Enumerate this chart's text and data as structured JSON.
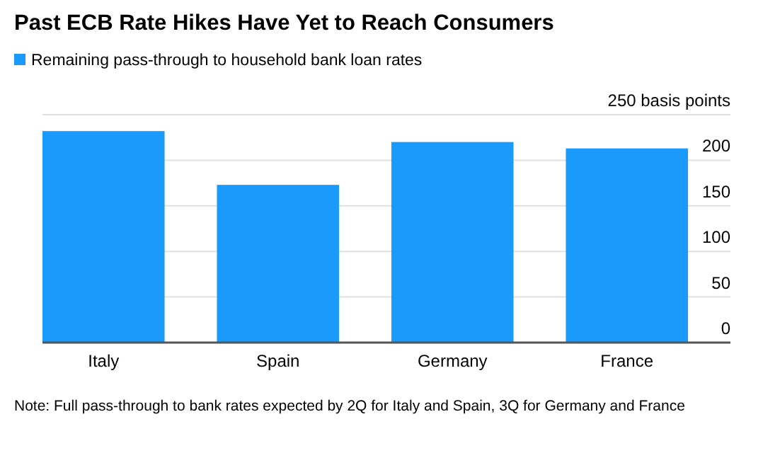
{
  "chart_data": {
    "type": "bar",
    "title": "Past ECB Rate Hikes Have Yet to Reach Consumers",
    "categories": [
      "Italy",
      "Spain",
      "Germany",
      "France"
    ],
    "series": [
      {
        "name": "Remaining pass-through to household bank loan rates",
        "color": "#1a9bfc",
        "values": [
          232,
          173,
          220,
          213
        ]
      }
    ],
    "ylim": [
      0,
      250
    ],
    "yticks": [
      0,
      50,
      100,
      150,
      200,
      {
        "value": 250,
        "label": "250 basis points"
      }
    ],
    "grid": "y",
    "legend": "top left",
    "annotations": [
      "Note: Full pass-through to bank rates expected by 2Q for Italy and Spain, 3Q for Germany and France"
    ]
  }
}
